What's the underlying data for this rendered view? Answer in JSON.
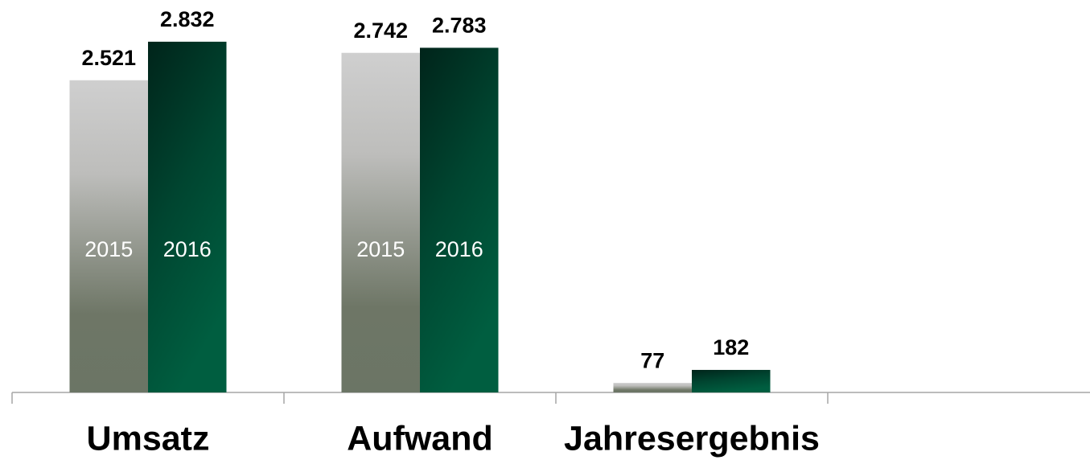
{
  "chart_data": {
    "type": "bar",
    "categories": [
      "Umsatz",
      "Aufwand",
      "Jahresergebnis",
      null
    ],
    "series": [
      {
        "name": "2015",
        "values": [
          2521,
          2742,
          77,
          null
        ],
        "value_labels": [
          "2.521",
          "2.742",
          "77",
          null
        ]
      },
      {
        "name": "2016",
        "values": [
          2832,
          2783,
          182,
          null
        ],
        "value_labels": [
          "2.832",
          "2.783",
          "182",
          null
        ]
      }
    ],
    "ylim": [
      0,
      3000
    ]
  }
}
